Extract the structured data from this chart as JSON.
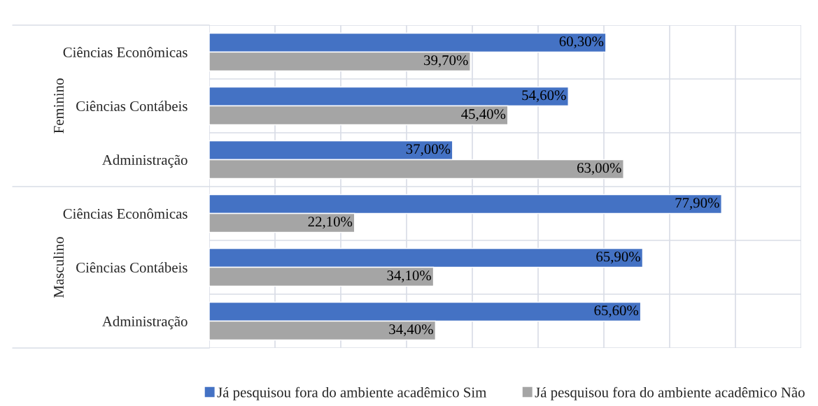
{
  "chart_data": {
    "type": "bar",
    "orientation": "horizontal",
    "categories": [
      "Ciências Econômicas",
      "Ciências Contábeis",
      "Administração",
      "Ciências Econômicas",
      "Ciências Contábeis",
      "Administração"
    ],
    "series": [
      {
        "name": "Já pesquisou fora do ambiente acadêmico Sim",
        "color": "#4472c4",
        "values": [
          60.3,
          54.6,
          37.0,
          77.9,
          65.9,
          65.6
        ],
        "value_labels": [
          "60,30%",
          "54,60%",
          "37,00%",
          "77,90%",
          "65,90%",
          "65,60%"
        ]
      },
      {
        "name": "Já pesquisou fora do ambiente acadêmico Não",
        "color": "#a5a5a5",
        "values": [
          39.7,
          45.4,
          63.0,
          22.1,
          34.1,
          34.4
        ],
        "value_labels": [
          "39,70%",
          "45,40%",
          "63,00%",
          "22,10%",
          "34,10%",
          "34,40%"
        ]
      }
    ],
    "annotations": [
      "Feminino",
      "Masculino"
    ],
    "xlim": [
      0,
      90
    ],
    "xticks": [
      {
        "value": 0,
        "label": null
      },
      {
        "value": 10,
        "label": null
      },
      {
        "value": 20,
        "label": null
      },
      {
        "value": 30,
        "label": null
      },
      {
        "value": 40,
        "label": null
      },
      {
        "value": 50,
        "label": null
      },
      {
        "value": 60,
        "label": null
      },
      {
        "value": 70,
        "label": null
      },
      {
        "value": 80,
        "label": null
      },
      {
        "value": 90,
        "label": null
      }
    ],
    "tick_labels": "y",
    "grid": true,
    "legend": "bottom"
  }
}
